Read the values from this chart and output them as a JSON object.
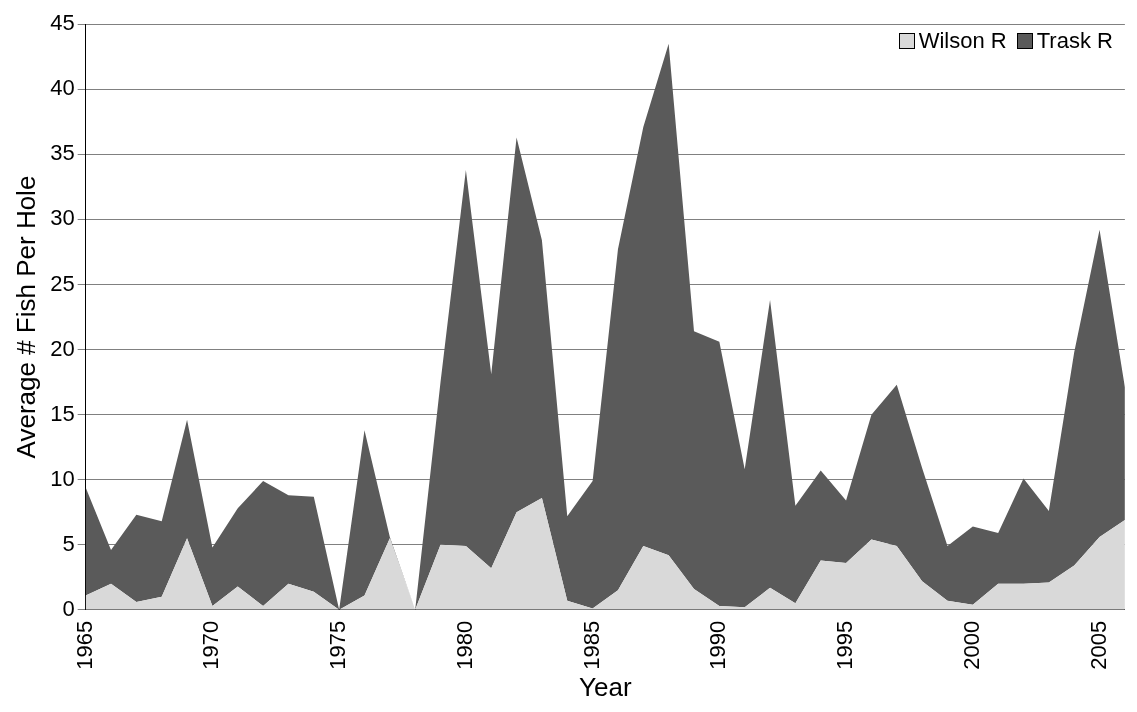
{
  "chart_data": {
    "type": "area",
    "stacked": true,
    "xlabel": "Year",
    "ylabel": "Average # Fish Per Hole",
    "x": [
      1965,
      1966,
      1967,
      1968,
      1969,
      1970,
      1971,
      1972,
      1973,
      1974,
      1975,
      1976,
      1977,
      1978,
      1979,
      1980,
      1981,
      1982,
      1983,
      1984,
      1985,
      1986,
      1987,
      1988,
      1989,
      1990,
      1991,
      1992,
      1993,
      1994,
      1995,
      1996,
      1997,
      1998,
      1999,
      2000,
      2001,
      2002,
      2003,
      2004,
      2005,
      2006
    ],
    "xlim": [
      1965,
      2006
    ],
    "xticks": [
      1965,
      1970,
      1975,
      1980,
      1985,
      1990,
      1995,
      2000,
      2005
    ],
    "ylim": [
      0,
      45
    ],
    "yticks": [
      0,
      5,
      10,
      15,
      20,
      25,
      30,
      35,
      40,
      45
    ],
    "grid": "y",
    "legend": "top right",
    "series": [
      {
        "name": "Wilson R",
        "color": "#d9d9d9",
        "values": [
          1.1,
          2.0,
          0.6,
          1.0,
          5.5,
          0.3,
          1.8,
          0.3,
          2.0,
          1.4,
          0,
          1.1,
          5.5,
          0,
          5.0,
          4.9,
          3.2,
          7.5,
          8.6,
          0.7,
          0.1,
          1.5,
          4.9,
          4.2,
          1.6,
          0.3,
          0.2,
          1.7,
          0.5,
          3.8,
          3.6,
          5.4,
          4.9,
          2.2,
          0.7,
          0.4,
          2.0,
          2.0,
          2.1,
          3.4,
          5.6,
          6.9
        ]
      },
      {
        "name": "Trask R",
        "color": "#5a5a5a",
        "values": [
          8.3,
          2.6,
          6.7,
          5.8,
          9.1,
          4.5,
          6.0,
          9.6,
          6.8,
          7.3,
          0,
          12.7,
          0.1,
          0,
          12.5,
          28.9,
          14.9,
          28.8,
          19.8,
          6.5,
          9.8,
          26.2,
          32.2,
          39.3,
          19.8,
          20.3,
          10.6,
          22.1,
          7.5,
          6.9,
          4.8,
          9.6,
          12.4,
          8.7,
          4.2,
          6.0,
          3.9,
          8.1,
          5.5,
          16.4,
          23.6,
          10.2
        ]
      }
    ]
  }
}
